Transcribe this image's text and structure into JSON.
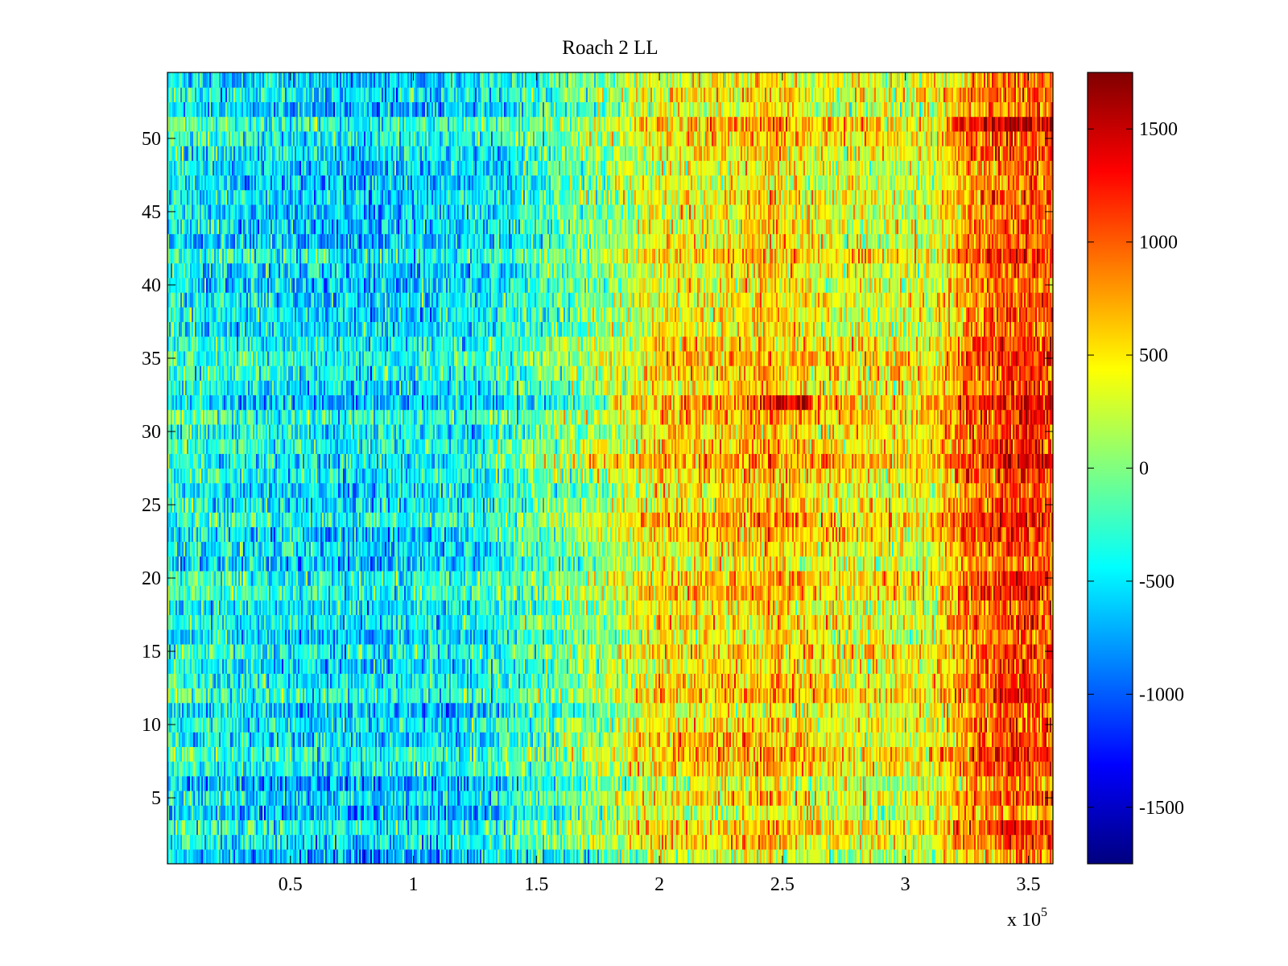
{
  "chart_data": {
    "type": "heatmap",
    "title": "Roach 2 LL",
    "xlabel": "",
    "ylabel": "",
    "x_multiplier_label": {
      "base": "x 10",
      "exponent": "5"
    },
    "xlim": [
      0,
      360000
    ],
    "ylim": [
      0.5,
      54.5
    ],
    "rows": 54,
    "x_ticks": [
      {
        "value": 0.5,
        "label": "0.5"
      },
      {
        "value": 1,
        "label": "1"
      },
      {
        "value": 1.5,
        "label": "1.5"
      },
      {
        "value": 2,
        "label": "2"
      },
      {
        "value": 2.5,
        "label": "2.5"
      },
      {
        "value": 3,
        "label": "3"
      },
      {
        "value": 3.5,
        "label": "3.5"
      }
    ],
    "y_ticks": [
      {
        "value": 5,
        "label": "5"
      },
      {
        "value": 10,
        "label": "10"
      },
      {
        "value": 15,
        "label": "15"
      },
      {
        "value": 20,
        "label": "20"
      },
      {
        "value": 25,
        "label": "25"
      },
      {
        "value": 30,
        "label": "30"
      },
      {
        "value": 35,
        "label": "35"
      },
      {
        "value": 40,
        "label": "40"
      },
      {
        "value": 45,
        "label": "45"
      },
      {
        "value": 50,
        "label": "50"
      }
    ],
    "colorbar": {
      "colormap": "jet",
      "clim": [
        -1750,
        1750
      ],
      "ticks": [
        {
          "value": 1500,
          "label": "1500"
        },
        {
          "value": 1000,
          "label": "1000"
        },
        {
          "value": 500,
          "label": "500"
        },
        {
          "value": 0,
          "label": "0"
        },
        {
          "value": -500,
          "label": "-500"
        },
        {
          "value": -1000,
          "label": "-1000"
        },
        {
          "value": -1500,
          "label": "-1500"
        }
      ]
    },
    "column_trend": [
      {
        "x": 0,
        "value": -350
      },
      {
        "x": 30000,
        "value": -500
      },
      {
        "x": 80000,
        "value": -600
      },
      {
        "x": 125000,
        "value": -500
      },
      {
        "x": 160000,
        "value": -150
      },
      {
        "x": 185000,
        "value": 150
      },
      {
        "x": 200000,
        "value": 420
      },
      {
        "x": 230000,
        "value": 450
      },
      {
        "x": 245000,
        "value": 600
      },
      {
        "x": 270000,
        "value": 350
      },
      {
        "x": 310000,
        "value": 300
      },
      {
        "x": 325000,
        "value": 800
      },
      {
        "x": 345000,
        "value": 1050
      },
      {
        "x": 360000,
        "value": 950
      }
    ],
    "row_offsets": [
      -200,
      60,
      180,
      -150,
      50,
      -180,
      150,
      220,
      10,
      80,
      -80,
      220,
      100,
      20,
      150,
      -50,
      120,
      0,
      230,
      200,
      -80,
      40,
      200,
      260,
      80,
      10,
      120,
      360,
      200,
      110,
      240,
      330,
      50,
      160,
      220,
      150,
      -40,
      10,
      20,
      -60,
      -30,
      180,
      -70,
      -20,
      -40,
      0,
      -80,
      -60,
      40,
      130,
      250,
      -120,
      40,
      -50
    ],
    "row_highlights": [
      {
        "row": 32,
        "x_from": 0,
        "x_to": 180000,
        "delta": -450
      },
      {
        "row": 32,
        "x_from": 242000,
        "x_to": 262000,
        "delta": 600
      },
      {
        "row": 28,
        "x_from": 0,
        "x_to": 125000,
        "delta": -280
      },
      {
        "row": 23,
        "x_from": 0,
        "x_to": 125000,
        "delta": -250
      },
      {
        "row": 9,
        "x_from": 185000,
        "x_to": 245000,
        "delta": 320
      },
      {
        "row": 51,
        "x_from": 320000,
        "x_to": 360000,
        "delta": 250
      }
    ]
  }
}
